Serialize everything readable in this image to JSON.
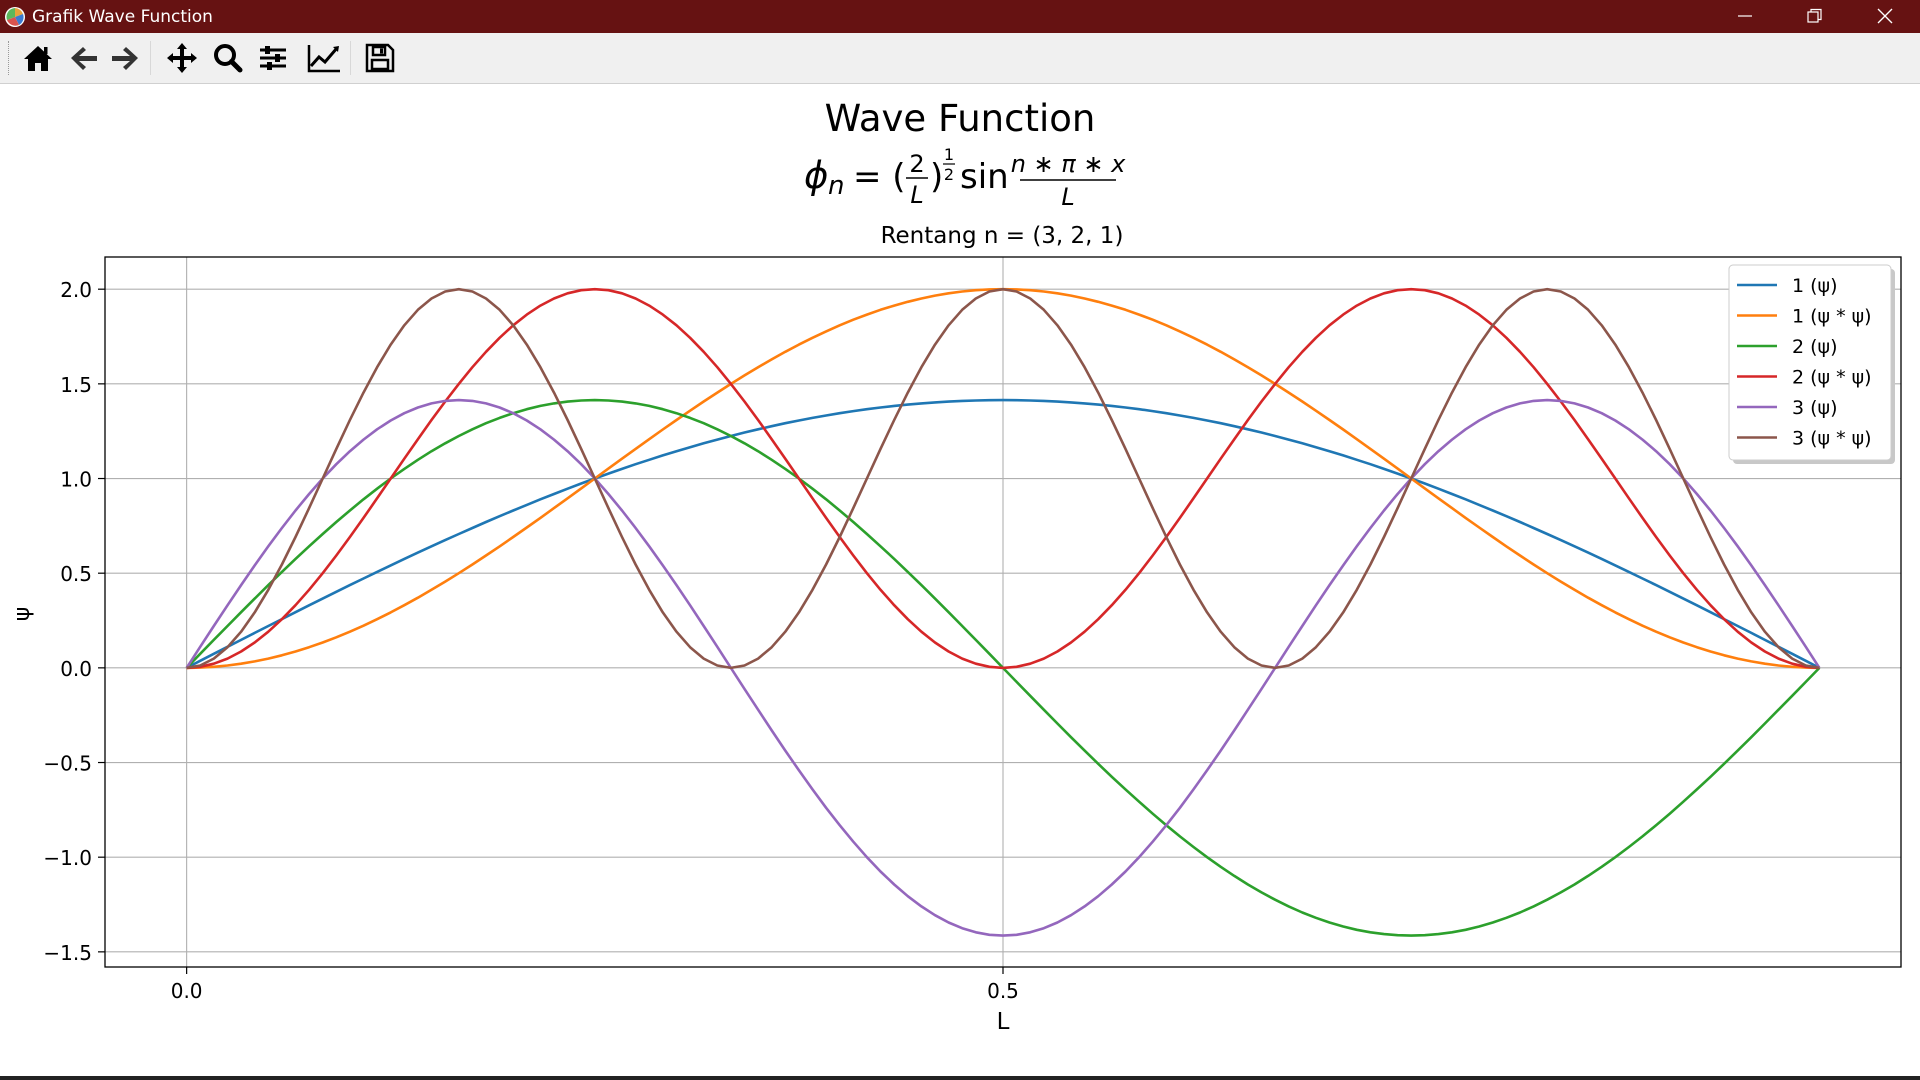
{
  "window": {
    "title": "Grafik Wave Function",
    "controls": [
      "minimize",
      "maximize",
      "close"
    ]
  },
  "toolbar": {
    "buttons": [
      {
        "name": "home",
        "icon": "home-icon"
      },
      {
        "name": "back",
        "icon": "arrow-left-icon"
      },
      {
        "name": "forward",
        "icon": "arrow-right-icon"
      },
      {
        "name": "pan",
        "icon": "move-icon"
      },
      {
        "name": "zoom",
        "icon": "magnifier-icon"
      },
      {
        "name": "configure-subplots",
        "icon": "sliders-icon"
      },
      {
        "name": "edit-axis",
        "icon": "line-chart-icon"
      },
      {
        "name": "save",
        "icon": "floppy-disk-icon"
      }
    ]
  },
  "figure": {
    "suptitle": "Wave Function",
    "formula": "φn = (2/L)^(1/2) sin(n*π*x/L)",
    "formula_parts": {
      "phi": "ϕ",
      "sub": "n",
      "eq": "= (",
      "frac_num": "2",
      "frac_den": "L",
      "close": ")",
      "exp_num": "1",
      "exp_den": "2",
      "sin": "sin",
      "arg_num": "n ∗ π ∗ x",
      "arg_den": "L"
    }
  },
  "chart_data": {
    "type": "line",
    "title": "Rentang n = (3, 2, 1)",
    "xlabel": "L",
    "ylabel": "ψ",
    "xlim": [
      -0.05,
      1.05
    ],
    "ylim": [
      -1.58,
      2.17
    ],
    "x_ticks": [
      0.0,
      0.5
    ],
    "x_tick_labels": [
      "0.0",
      "0.5"
    ],
    "y_ticks": [
      -1.5,
      -1.0,
      -0.5,
      0.0,
      0.5,
      1.0,
      1.5,
      2.0
    ],
    "y_tick_labels": [
      "−1.5",
      "−1.0",
      "−0.5",
      "0.0",
      "0.5",
      "1.0",
      "1.5",
      "2.0"
    ],
    "grid": true,
    "legend_position": "top-right",
    "x_range": [
      0,
      1
    ],
    "L": 1,
    "series": [
      {
        "name": "1 (ψ)",
        "n": 1,
        "kind": "psi",
        "color": "#1f77b4"
      },
      {
        "name": "1 (ψ * ψ)",
        "n": 1,
        "kind": "psi_squared",
        "color": "#ff7f0e"
      },
      {
        "name": "2 (ψ)",
        "n": 2,
        "kind": "psi",
        "color": "#2ca02c"
      },
      {
        "name": "2 (ψ * ψ)",
        "n": 2,
        "kind": "psi_squared",
        "color": "#d62728"
      },
      {
        "name": "3 (ψ)",
        "n": 3,
        "kind": "psi",
        "color": "#9467bd"
      },
      {
        "name": "3 (ψ * ψ)",
        "n": 3,
        "kind": "psi_squared",
        "color": "#8c564b"
      }
    ]
  }
}
